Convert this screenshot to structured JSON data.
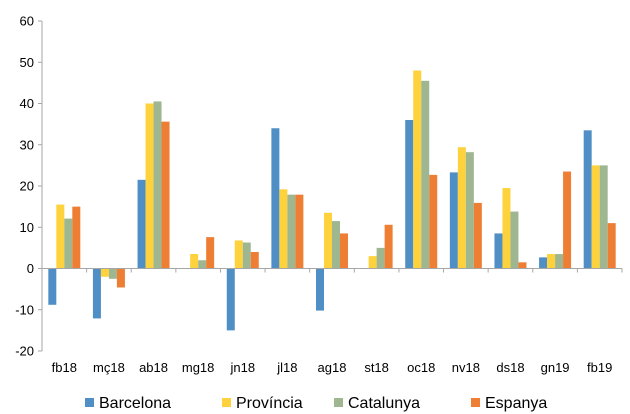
{
  "chart_data": {
    "type": "bar",
    "title": "",
    "xlabel": "",
    "ylabel": "",
    "ylim": [
      -20,
      60
    ],
    "yticks": [
      -20,
      -10,
      0,
      10,
      20,
      30,
      40,
      50,
      60
    ],
    "ytick_labels": [
      "-20",
      "-10",
      "0",
      "10",
      "20",
      "30",
      "40",
      "50",
      "60"
    ],
    "grid": false,
    "legend_position": "bottom",
    "categories": [
      "fb18",
      "mç18",
      "ab18",
      "mg18",
      "jn18",
      "jl18",
      "ag18",
      "st18",
      "oc18",
      "nv18",
      "ds18",
      "gn19",
      "fb19"
    ],
    "series": [
      {
        "name": "Barcelona",
        "color": "#4f8fc5",
        "values": [
          -8.8,
          -12.1,
          21.5,
          0,
          -15.0,
          34.0,
          -10.2,
          0,
          36.0,
          23.3,
          8.5,
          2.7,
          33.5
        ]
      },
      {
        "name": "Província",
        "color": "#fdd23c",
        "values": [
          15.5,
          -2.0,
          40.0,
          3.5,
          6.8,
          19.2,
          13.5,
          3.0,
          48.0,
          29.4,
          19.5,
          3.5,
          25.0
        ]
      },
      {
        "name": "Catalunya",
        "color": "#9fb791",
        "values": [
          12.1,
          -2.5,
          40.5,
          2.0,
          6.3,
          17.9,
          11.5,
          5.0,
          45.5,
          28.2,
          13.8,
          3.5,
          25.0
        ]
      },
      {
        "name": "Espanya",
        "color": "#ee7e33",
        "values": [
          15.0,
          -4.6,
          35.6,
          7.6,
          4.0,
          17.9,
          8.5,
          10.6,
          22.7,
          15.9,
          1.5,
          23.5,
          11.0
        ]
      }
    ]
  },
  "colors": {
    "axis": "#a6a6a6",
    "text": "#000000",
    "background": "#ffffff"
  }
}
